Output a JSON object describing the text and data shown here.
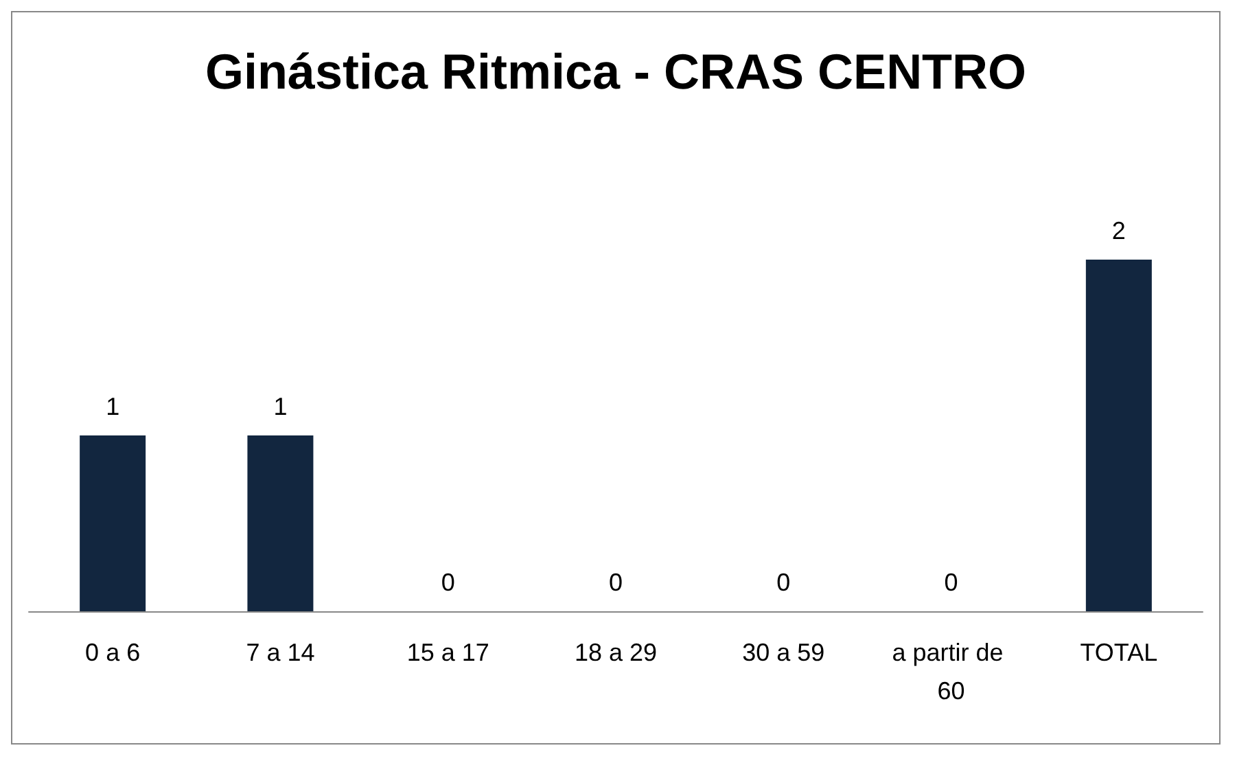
{
  "chart_data": {
    "type": "bar",
    "title": "Ginástica Ritmica - CRAS CENTRO",
    "categories": [
      "0 a 6",
      "7 a 14",
      "15 a 17",
      "18 a 29",
      "30 a 59",
      "a partir de 60",
      "TOTAL"
    ],
    "values": [
      1,
      1,
      0,
      0,
      0,
      0,
      2
    ],
    "color": "#12263f",
    "data_labels": true
  }
}
